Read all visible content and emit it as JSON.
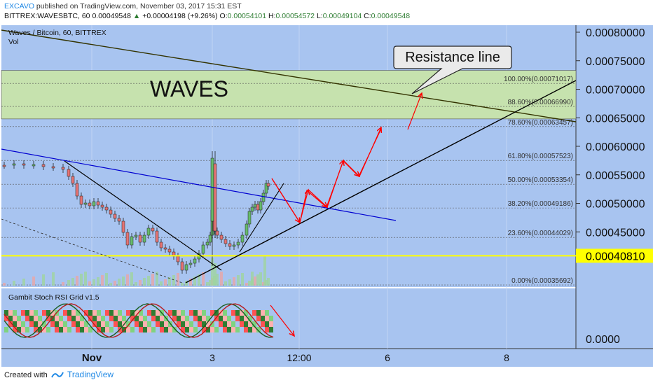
{
  "header": {
    "publisher": "EXCAVO",
    "publisher_suffix": " published on TradingView.com, November 03, 2017 15:31 EST",
    "symbol_line": "BITTREX:WAVESBTC, 60",
    "last_price": "0.00049548",
    "change": "+0.00004198 (+9.26%)",
    "open_label": "O:",
    "open": "0.00054101",
    "high_label": "H:",
    "high": "0.00054572",
    "low_label": "L:",
    "low": "0.00049104",
    "close_label": "C:",
    "close": "0.00049548"
  },
  "pane_labels": {
    "title": "Waves / Bitcoin, 60, BITTREX",
    "volume": "Vol",
    "indicator": "Gambit Stoch RSI Grid v1.5"
  },
  "annotations": {
    "zone_text": "WAVES",
    "callout": "Resistance line"
  },
  "colors": {
    "background": "#a8c4f0",
    "zone": "#c6e2ae",
    "current_price_line": "#ffff00",
    "fib_text": "#333333",
    "trend_down": "#0000d0",
    "arrows": "#ff0000"
  },
  "chart_data": {
    "type": "candlestick",
    "y_axis": {
      "range": [
        0.0003,
        0.00081
      ],
      "ticks": [
        "0.00080000",
        "0.00075000",
        "0.00070000",
        "0.00065000",
        "0.00060000",
        "0.00055000",
        "0.00050000",
        "0.00045000"
      ],
      "tick_values": [
        0.0008,
        0.00075,
        0.0007,
        0.00065,
        0.0006,
        0.00055,
        0.0005,
        0.00045
      ],
      "current_price_label": "0.00040810",
      "current_price": 0.0004081
    },
    "indicator_axis": {
      "ticks": [
        "0.0000"
      ]
    },
    "x_axis": {
      "ticks": [
        "Nov",
        "3",
        "12:00",
        "6",
        "8"
      ]
    },
    "resistance_zone": [
      0.000648,
      0.000733
    ],
    "fibonacci": [
      {
        "label": "100.00%(0.00071017)",
        "level": 1.0,
        "value": 0.00071017
      },
      {
        "label": "88.60%(0.00066990)",
        "level": 0.886,
        "value": 0.0006699
      },
      {
        "label": "78.60%(0.00063457)",
        "level": 0.786,
        "value": 0.00063457
      },
      {
        "label": "61.80%(0.00057523)",
        "level": 0.618,
        "value": 0.00057523
      },
      {
        "label": "50.00%(0.00053354)",
        "level": 0.5,
        "value": 0.00053354
      },
      {
        "label": "38.20%(0.00049186)",
        "level": 0.382,
        "value": 0.00049186
      },
      {
        "label": "23.60%(0.00044029)",
        "level": 0.236,
        "value": 0.00044029
      },
      {
        "label": "0.00%(0.00035692)",
        "level": 0.0,
        "value": 0.00035692
      }
    ]
  }
}
